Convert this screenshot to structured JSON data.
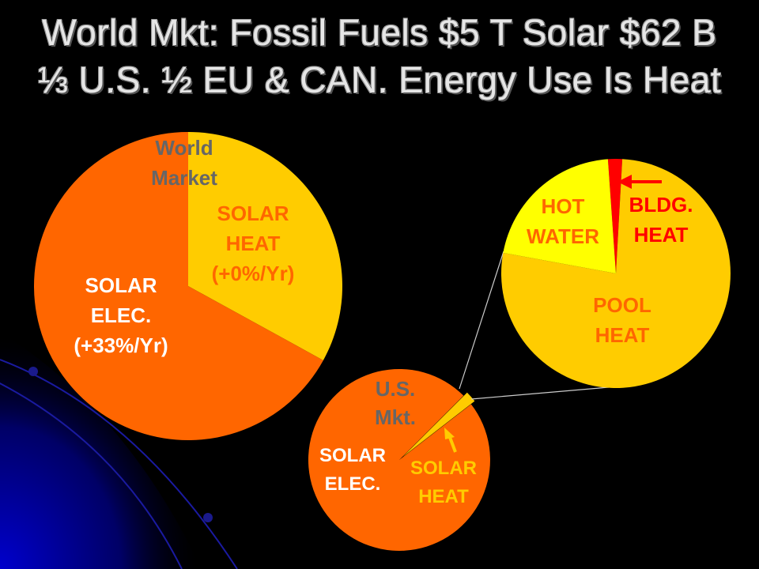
{
  "slide": {
    "title_line1": "World Mkt: Fossil Fuels $5 T Solar $62 B",
    "title_line2": "⅓ U.S. ½ EU & CAN. Energy Use Is Heat"
  },
  "colors": {
    "background": "#000000",
    "orange": "#ff6600",
    "yellow": "#ffcc00",
    "bright_yellow": "#ffff00",
    "red": "#ff0000",
    "label_gray": "#666666",
    "label_white": "#ffffff",
    "title_text": "#e6e6e6",
    "decor_blue": "#0000aa"
  },
  "chart_data": [
    {
      "type": "pie",
      "title": "World Market",
      "slices": [
        {
          "label": "SOLAR HEAT (+0%/Yr)",
          "lines": [
            "SOLAR",
            "HEAT",
            "(+0%/Yr)"
          ],
          "fraction": 0.33,
          "color": "#ffcc00",
          "label_color": "#ff6600"
        },
        {
          "label": "SOLAR ELEC. (+33%/Yr)",
          "lines": [
            "SOLAR",
            "ELEC.",
            "(+33%/Yr)"
          ],
          "fraction": 0.67,
          "color": "#ff6600",
          "label_color": "#ffffff"
        }
      ]
    },
    {
      "type": "pie",
      "title": "U.S. Mkt.",
      "slices": [
        {
          "label": "SOLAR HEAT",
          "lines": [
            "SOLAR",
            "HEAT"
          ],
          "fraction": 0.02,
          "color": "#ffcc00",
          "label_color": "#ffcc00",
          "exploded": true
        },
        {
          "label": "SOLAR ELEC.",
          "lines": [
            "SOLAR",
            "ELEC."
          ],
          "fraction": 0.98,
          "color": "#ff6600",
          "label_color": "#ffffff"
        }
      ]
    },
    {
      "type": "pie",
      "title": "",
      "slices": [
        {
          "label": "BLDG. HEAT",
          "lines": [
            "BLDG.",
            "HEAT"
          ],
          "fraction": 0.02,
          "color": "#ff0000",
          "label_color": "#ff0000"
        },
        {
          "label": "POOL HEAT",
          "lines": [
            "POOL",
            "HEAT"
          ],
          "fraction": 0.77,
          "color": "#ffcc00",
          "label_color": "#ff6600"
        },
        {
          "label": "HOT WATER",
          "lines": [
            "HOT",
            "WATER"
          ],
          "fraction": 0.21,
          "color": "#ffff00",
          "label_color": "#ff6600"
        }
      ]
    }
  ]
}
